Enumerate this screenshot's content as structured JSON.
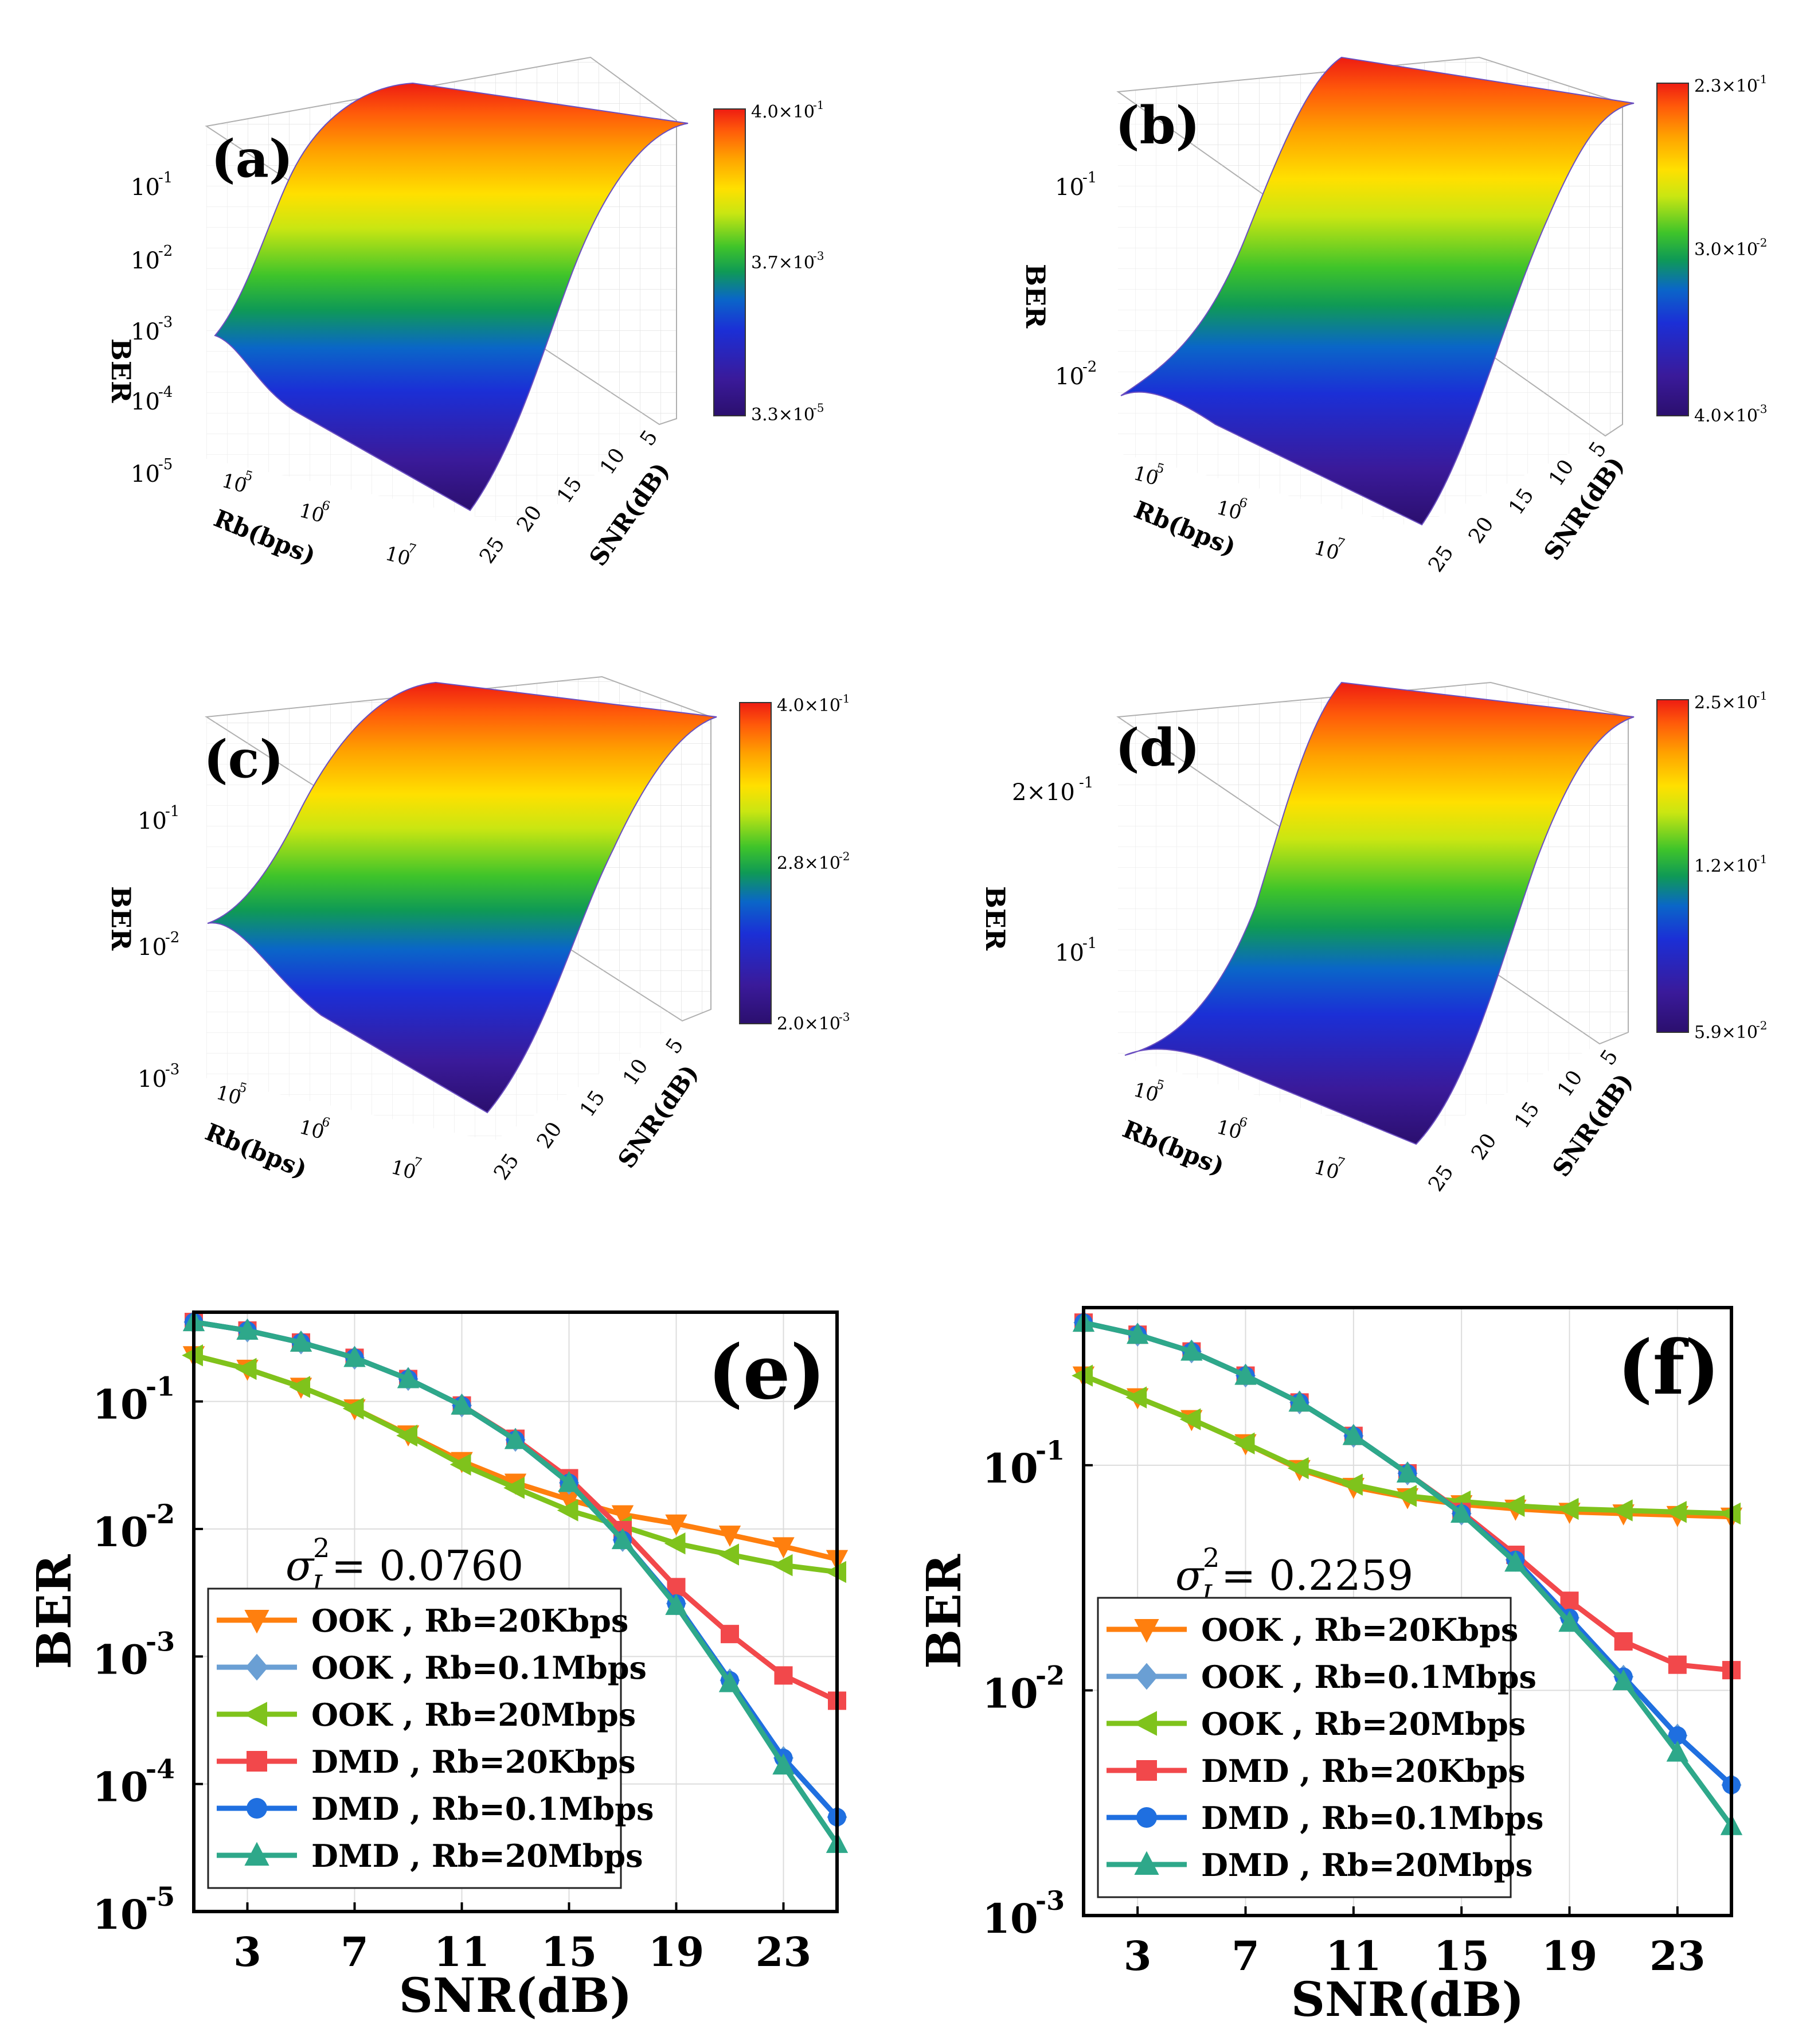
{
  "surface_panels": [
    {
      "label": "(a)",
      "zlabel": "BER",
      "z_ticks": [
        "10",
        "10",
        "10",
        "10",
        "10"
      ],
      "z_exps": [
        "-1",
        "-2",
        "-3",
        "-4",
        "-5"
      ],
      "colorbar": [
        "4.0×10",
        "3.7×10",
        "3.3×10"
      ],
      "colorbar_exps": [
        "-1",
        "-3",
        "-5"
      ],
      "rb_label": "Rb(bps)",
      "rb_ticks": [
        "10",
        "10",
        "10"
      ],
      "rb_exps": [
        "5",
        "6",
        "7"
      ],
      "snr_label": "SNR(dB)",
      "snr_ticks": [
        "25",
        "20",
        "15",
        "10",
        "5"
      ]
    },
    {
      "label": "(b)",
      "zlabel": "BER",
      "z_ticks": [
        "10",
        "10"
      ],
      "z_exps": [
        "-1",
        "-2"
      ],
      "colorbar": [
        "2.3×10",
        "3.0×10",
        "4.0×10"
      ],
      "colorbar_exps": [
        "-1",
        "-2",
        "-3"
      ],
      "rb_label": "Rb(bps)",
      "rb_ticks": [
        "10",
        "10",
        "10"
      ],
      "rb_exps": [
        "5",
        "6",
        "7"
      ],
      "snr_label": "SNR(dB)",
      "snr_ticks": [
        "25",
        "20",
        "15",
        "10",
        "5"
      ]
    },
    {
      "label": "(c)",
      "zlabel": "BER",
      "z_ticks": [
        "10",
        "10",
        "10"
      ],
      "z_exps": [
        "-1",
        "-2",
        "-3"
      ],
      "colorbar": [
        "4.0×10",
        "2.8×10",
        "2.0×10"
      ],
      "colorbar_exps": [
        "-1",
        "-2",
        "-3"
      ],
      "rb_label": "Rb(bps)",
      "rb_ticks": [
        "10",
        "10",
        "10"
      ],
      "rb_exps": [
        "5",
        "6",
        "7"
      ],
      "snr_label": "SNR(dB)",
      "snr_ticks": [
        "25",
        "20",
        "15",
        "10",
        "5"
      ]
    },
    {
      "label": "(d)",
      "zlabel": "BER",
      "z_ticks": [
        "2×10",
        "10"
      ],
      "z_exps": [
        "-1",
        "-1"
      ],
      "colorbar": [
        "2.5×10",
        "1.2×10",
        "5.9×10"
      ],
      "colorbar_exps": [
        "-1",
        "-1",
        "-2"
      ],
      "rb_label": "Rb(bps)",
      "rb_ticks": [
        "10",
        "10",
        "10"
      ],
      "rb_exps": [
        "5",
        "6",
        "7"
      ],
      "snr_label": "SNR(dB)",
      "snr_ticks": [
        "25",
        "20",
        "15",
        "10",
        "5"
      ]
    }
  ],
  "chart_data": [
    {
      "type": "line",
      "panel": "(e)",
      "xlabel": "SNR(dB)",
      "ylabel": "BER",
      "yscale": "log",
      "xlim": [
        1,
        25
      ],
      "ylim_exp": [
        -5,
        -0.3
      ],
      "x_ticks": [
        3,
        7,
        11,
        15,
        19,
        23
      ],
      "y_tick_exps": [
        -1,
        -2,
        -3,
        -4,
        -5
      ],
      "y_tick_base": "10",
      "annotation": "σ_I^2 = 0.0760",
      "annotation_sym": "σ",
      "annotation_sup": "2",
      "annotation_sub": "I",
      "annotation_val": " = 0.0760",
      "x": [
        1,
        3,
        5,
        7,
        9,
        11,
        13,
        15,
        17,
        19,
        21,
        23,
        25
      ],
      "series": [
        {
          "name": "OOK , Rb=20Kbps",
          "color": "#ff7f0e",
          "marker": "tri-down",
          "values": [
            0.23,
            0.18,
            0.13,
            0.088,
            0.055,
            0.034,
            0.023,
            0.017,
            0.013,
            0.011,
            0.009,
            0.0073,
            0.0058
          ]
        },
        {
          "name": "OOK , Rb=0.1Mbps",
          "color": "#6a9fd4",
          "marker": "diamond",
          "values": [
            0.42,
            0.36,
            0.29,
            0.22,
            0.15,
            0.093,
            0.05,
            0.023,
            0.0082,
            0.0026,
            0.00065,
            0.00016,
            5.5e-05
          ]
        },
        {
          "name": "OOK , Rb=20Mbps",
          "color": "#7fc31c",
          "marker": "tri-left",
          "values": [
            0.23,
            0.18,
            0.13,
            0.088,
            0.054,
            0.032,
            0.021,
            0.014,
            0.0105,
            0.0077,
            0.0063,
            0.0052,
            0.0046
          ]
        },
        {
          "name": "DMD , Rb=20Kbps",
          "color": "#f2484b",
          "marker": "square",
          "values": [
            0.42,
            0.36,
            0.29,
            0.22,
            0.15,
            0.093,
            0.051,
            0.025,
            0.0098,
            0.0035,
            0.0015,
            0.00071,
            0.00045
          ]
        },
        {
          "name": "DMD , Rb=0.1Mbps",
          "color": "#1f6fe0",
          "marker": "circle",
          "values": [
            0.42,
            0.36,
            0.29,
            0.22,
            0.15,
            0.093,
            0.05,
            0.023,
            0.0082,
            0.0026,
            0.00065,
            0.00016,
            5.5e-05
          ]
        },
        {
          "name": "DMD , Rb=20Mbps",
          "color": "#2ea88a",
          "marker": "tri-up",
          "values": [
            0.42,
            0.36,
            0.29,
            0.22,
            0.15,
            0.093,
            0.05,
            0.023,
            0.0082,
            0.0025,
            0.00062,
            0.00014,
            3.4e-05
          ]
        }
      ]
    },
    {
      "type": "line",
      "panel": "(f)",
      "xlabel": "SNR(dB)",
      "ylabel": "BER",
      "yscale": "log",
      "xlim": [
        1,
        25
      ],
      "ylim_exp": [
        -3,
        -0.3
      ],
      "x_ticks": [
        3,
        7,
        11,
        15,
        19,
        23
      ],
      "y_tick_exps": [
        -1,
        -2,
        -3
      ],
      "y_tick_base": "10",
      "annotation": "σ_I^2 = 0.2259",
      "annotation_sym": "σ",
      "annotation_sup": "2",
      "annotation_sub": "I",
      "annotation_val": " = 0.2259",
      "x": [
        1,
        3,
        5,
        7,
        9,
        11,
        13,
        15,
        17,
        19,
        21,
        23,
        25
      ],
      "series": [
        {
          "name": "OOK , Rb=20Kbps",
          "color": "#ff7f0e",
          "marker": "tri-down",
          "values": [
            0.25,
            0.2,
            0.16,
            0.125,
            0.096,
            0.08,
            0.072,
            0.067,
            0.064,
            0.062,
            0.061,
            0.06,
            0.059
          ]
        },
        {
          "name": "OOK , Rb=0.1Mbps",
          "color": "#6a9fd4",
          "marker": "diamond",
          "values": [
            0.43,
            0.38,
            0.32,
            0.25,
            0.19,
            0.135,
            0.092,
            0.061,
            0.038,
            0.021,
            0.0115,
            0.0063,
            0.0038
          ]
        },
        {
          "name": "OOK , Rb=20Mbps",
          "color": "#7fc31c",
          "marker": "tri-left",
          "values": [
            0.25,
            0.2,
            0.16,
            0.125,
            0.097,
            0.082,
            0.073,
            0.069,
            0.066,
            0.064,
            0.063,
            0.062,
            0.061
          ]
        },
        {
          "name": "DMD , Rb=20Kbps",
          "color": "#f2484b",
          "marker": "square",
          "values": [
            0.43,
            0.38,
            0.32,
            0.25,
            0.19,
            0.135,
            0.092,
            0.062,
            0.04,
            0.025,
            0.0165,
            0.013,
            0.0123
          ]
        },
        {
          "name": "DMD , Rb=0.1Mbps",
          "color": "#1f6fe0",
          "marker": "circle",
          "values": [
            0.43,
            0.38,
            0.32,
            0.25,
            0.19,
            0.135,
            0.092,
            0.061,
            0.038,
            0.021,
            0.0115,
            0.0063,
            0.0038
          ]
        },
        {
          "name": "DMD , Rb=20Mbps",
          "color": "#2ea88a",
          "marker": "tri-up",
          "values": [
            0.43,
            0.38,
            0.32,
            0.25,
            0.19,
            0.135,
            0.092,
            0.061,
            0.037,
            0.02,
            0.011,
            0.0053,
            0.0025
          ]
        }
      ]
    }
  ]
}
